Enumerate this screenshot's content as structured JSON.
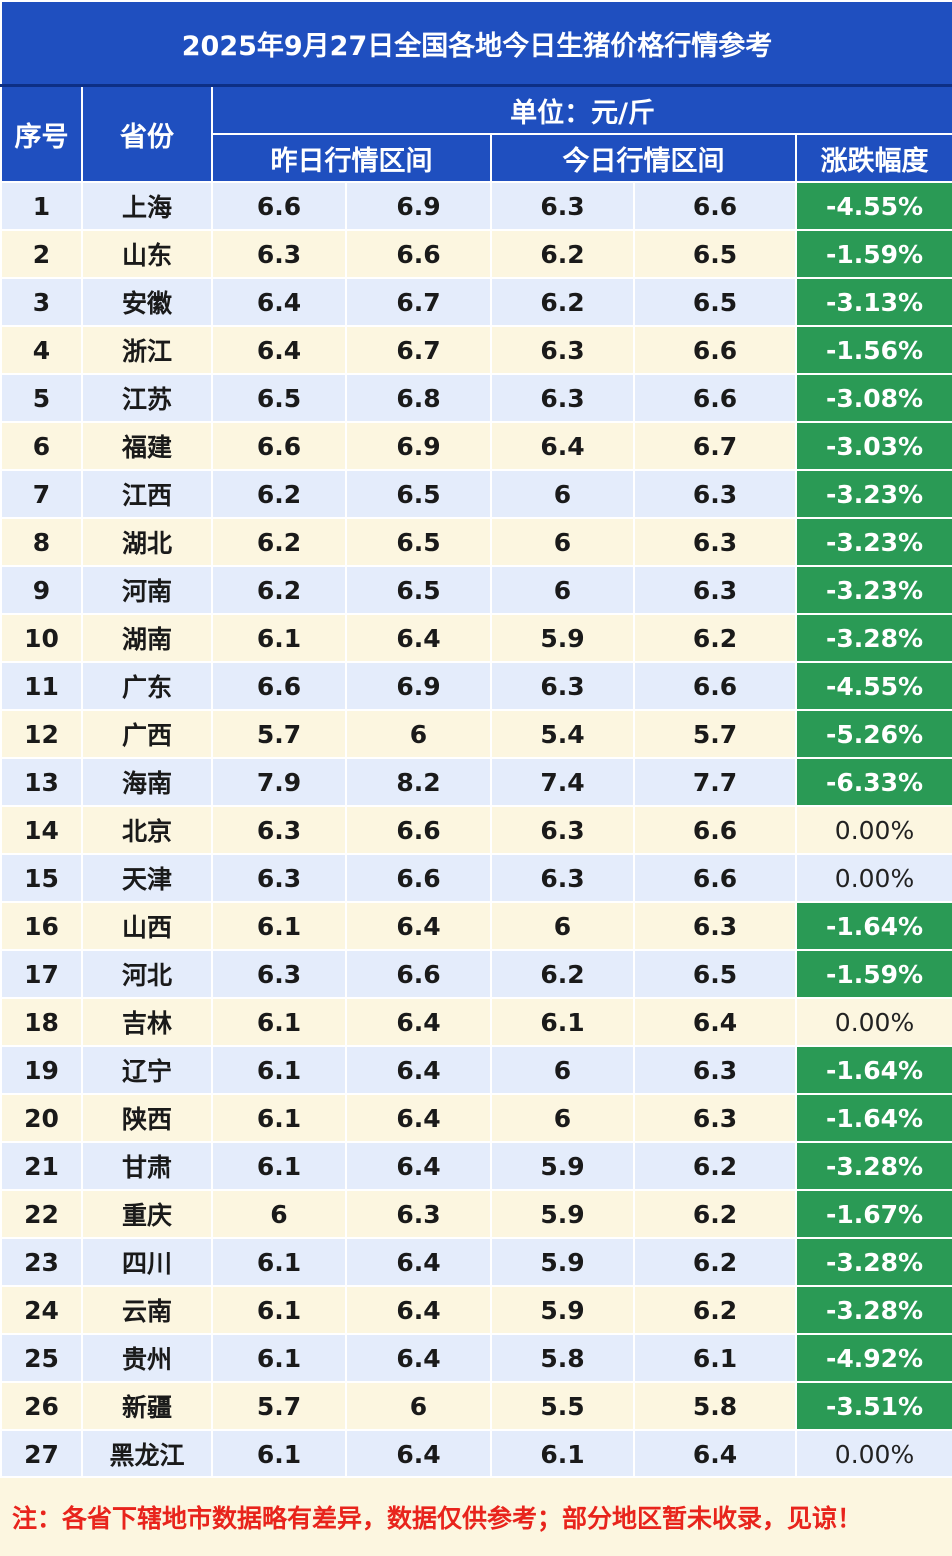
{
  "title": "2025年9月27日全国各地今日生猪价格行情参考",
  "header": {
    "index_label": "序号",
    "province_label": "省份",
    "unit_label": "单位：元/斤",
    "yesterday_label": "昨日行情区间",
    "today_label": "今日行情区间",
    "change_label": "涨跌幅度"
  },
  "colors": {
    "header_blue": "#1f4fbf",
    "row_blue": "#e4ecfb",
    "row_cream": "#fcf6e0",
    "decline_green": "#2a9a55",
    "note_red": "#e8241c"
  },
  "rows": [
    {
      "no": "1",
      "province": "上海",
      "y_low": "6.6",
      "y_high": "6.9",
      "t_low": "6.3",
      "t_high": "6.6",
      "change": "-4.55%"
    },
    {
      "no": "2",
      "province": "山东",
      "y_low": "6.3",
      "y_high": "6.6",
      "t_low": "6.2",
      "t_high": "6.5",
      "change": "-1.59%"
    },
    {
      "no": "3",
      "province": "安徽",
      "y_low": "6.4",
      "y_high": "6.7",
      "t_low": "6.2",
      "t_high": "6.5",
      "change": "-3.13%"
    },
    {
      "no": "4",
      "province": "浙江",
      "y_low": "6.4",
      "y_high": "6.7",
      "t_low": "6.3",
      "t_high": "6.6",
      "change": "-1.56%"
    },
    {
      "no": "5",
      "province": "江苏",
      "y_low": "6.5",
      "y_high": "6.8",
      "t_low": "6.3",
      "t_high": "6.6",
      "change": "-3.08%"
    },
    {
      "no": "6",
      "province": "福建",
      "y_low": "6.6",
      "y_high": "6.9",
      "t_low": "6.4",
      "t_high": "6.7",
      "change": "-3.03%"
    },
    {
      "no": "7",
      "province": "江西",
      "y_low": "6.2",
      "y_high": "6.5",
      "t_low": "6",
      "t_high": "6.3",
      "change": "-3.23%"
    },
    {
      "no": "8",
      "province": "湖北",
      "y_low": "6.2",
      "y_high": "6.5",
      "t_low": "6",
      "t_high": "6.3",
      "change": "-3.23%"
    },
    {
      "no": "9",
      "province": "河南",
      "y_low": "6.2",
      "y_high": "6.5",
      "t_low": "6",
      "t_high": "6.3",
      "change": "-3.23%"
    },
    {
      "no": "10",
      "province": "湖南",
      "y_low": "6.1",
      "y_high": "6.4",
      "t_low": "5.9",
      "t_high": "6.2",
      "change": "-3.28%"
    },
    {
      "no": "11",
      "province": "广东",
      "y_low": "6.6",
      "y_high": "6.9",
      "t_low": "6.3",
      "t_high": "6.6",
      "change": "-4.55%"
    },
    {
      "no": "12",
      "province": "广西",
      "y_low": "5.7",
      "y_high": "6",
      "t_low": "5.4",
      "t_high": "5.7",
      "change": "-5.26%"
    },
    {
      "no": "13",
      "province": "海南",
      "y_low": "7.9",
      "y_high": "8.2",
      "t_low": "7.4",
      "t_high": "7.7",
      "change": "-6.33%"
    },
    {
      "no": "14",
      "province": "北京",
      "y_low": "6.3",
      "y_high": "6.6",
      "t_low": "6.3",
      "t_high": "6.6",
      "change": "0.00%"
    },
    {
      "no": "15",
      "province": "天津",
      "y_low": "6.3",
      "y_high": "6.6",
      "t_low": "6.3",
      "t_high": "6.6",
      "change": "0.00%"
    },
    {
      "no": "16",
      "province": "山西",
      "y_low": "6.1",
      "y_high": "6.4",
      "t_low": "6",
      "t_high": "6.3",
      "change": "-1.64%"
    },
    {
      "no": "17",
      "province": "河北",
      "y_low": "6.3",
      "y_high": "6.6",
      "t_low": "6.2",
      "t_high": "6.5",
      "change": "-1.59%"
    },
    {
      "no": "18",
      "province": "吉林",
      "y_low": "6.1",
      "y_high": "6.4",
      "t_low": "6.1",
      "t_high": "6.4",
      "change": "0.00%"
    },
    {
      "no": "19",
      "province": "辽宁",
      "y_low": "6.1",
      "y_high": "6.4",
      "t_low": "6",
      "t_high": "6.3",
      "change": "-1.64%"
    },
    {
      "no": "20",
      "province": "陕西",
      "y_low": "6.1",
      "y_high": "6.4",
      "t_low": "6",
      "t_high": "6.3",
      "change": "-1.64%"
    },
    {
      "no": "21",
      "province": "甘肃",
      "y_low": "6.1",
      "y_high": "6.4",
      "t_low": "5.9",
      "t_high": "6.2",
      "change": "-3.28%"
    },
    {
      "no": "22",
      "province": "重庆",
      "y_low": "6",
      "y_high": "6.3",
      "t_low": "5.9",
      "t_high": "6.2",
      "change": "-1.67%"
    },
    {
      "no": "23",
      "province": "四川",
      "y_low": "6.1",
      "y_high": "6.4",
      "t_low": "5.9",
      "t_high": "6.2",
      "change": "-3.28%"
    },
    {
      "no": "24",
      "province": "云南",
      "y_low": "6.1",
      "y_high": "6.4",
      "t_low": "5.9",
      "t_high": "6.2",
      "change": "-3.28%"
    },
    {
      "no": "25",
      "province": "贵州",
      "y_low": "6.1",
      "y_high": "6.4",
      "t_low": "5.8",
      "t_high": "6.1",
      "change": "-4.92%"
    },
    {
      "no": "26",
      "province": "新疆",
      "y_low": "5.7",
      "y_high": "6",
      "t_low": "5.5",
      "t_high": "5.8",
      "change": "-3.51%"
    },
    {
      "no": "27",
      "province": "黑龙江",
      "y_low": "6.1",
      "y_high": "6.4",
      "t_low": "6.1",
      "t_high": "6.4",
      "change": "0.00%"
    }
  ],
  "note": "注：各省下辖地市数据略有差异，数据仅供参考；部分地区暂未收录，见谅！"
}
